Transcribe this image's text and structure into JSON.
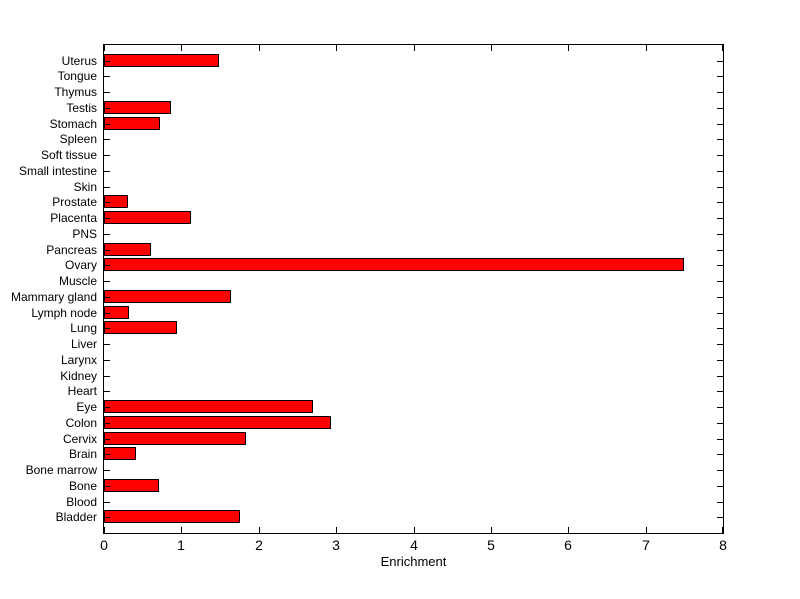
{
  "chart_data": {
    "type": "bar",
    "orientation": "horizontal",
    "title": "",
    "xlabel": "Enrichment",
    "ylabel": "",
    "xlim": [
      0,
      8
    ],
    "xticks": [
      0,
      1,
      2,
      3,
      4,
      5,
      6,
      7,
      8
    ],
    "grid": false,
    "legend": false,
    "categories_top_to_bottom": [
      "Uterus",
      "Tongue",
      "Thymus",
      "Testis",
      "Stomach",
      "Spleen",
      "Soft tissue",
      "Small intestine",
      "Skin",
      "Prostate",
      "Placenta",
      "PNS",
      "Pancreas",
      "Ovary",
      "Muscle",
      "Mammary gland",
      "Lymph node",
      "Lung",
      "Liver",
      "Larynx",
      "Kidney",
      "Heart",
      "Eye",
      "Colon",
      "Cervix",
      "Brain",
      "Bone marrow",
      "Bone",
      "Blood",
      "Bladder"
    ],
    "values": [
      1.46,
      0,
      0,
      0.84,
      0.7,
      0,
      0,
      0,
      0,
      0.29,
      1.1,
      0,
      0.58,
      7.47,
      0,
      1.61,
      0.3,
      0.92,
      0,
      0,
      0,
      0,
      2.67,
      2.91,
      1.81,
      0.39,
      0,
      0.69,
      0,
      1.73
    ],
    "bar_color": "#FF0000",
    "bar_edge_color": "#000000",
    "axis_color": "#000000",
    "background_color": "#FFFFFF"
  }
}
